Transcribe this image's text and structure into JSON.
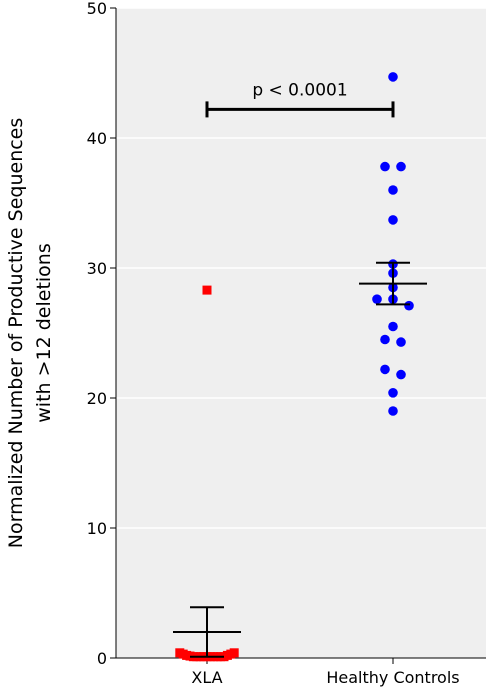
{
  "chart_data": {
    "type": "scatter",
    "title": "",
    "xlabel": "",
    "ylabel_lines": [
      "Normalized Number of Productive Sequences",
      "with >12 deletions"
    ],
    "ylim": [
      0,
      50
    ],
    "yticks": [
      0,
      10,
      20,
      30,
      40,
      50
    ],
    "categories": [
      "XLA",
      "Healthy Controls"
    ],
    "grid": "horizontal",
    "series": [
      {
        "category": "XLA",
        "marker": "square",
        "color": "#ff0000",
        "values": [
          28.3,
          0.4,
          0.3,
          0.2,
          0.15,
          0.1,
          0.1,
          0.1,
          0.1,
          0.1,
          0.1,
          0.1,
          0.1,
          0.1,
          0.1,
          0.2,
          0.3,
          0.4
        ],
        "mean": 2.0,
        "sem_upper": 3.9,
        "sem_lower": 0.1
      },
      {
        "category": "Healthy Controls",
        "marker": "circle",
        "color": "#0000ff",
        "values": [
          44.7,
          37.8,
          37.8,
          36.0,
          33.7,
          30.3,
          29.6,
          28.5,
          27.6,
          27.6,
          27.1,
          25.5,
          24.5,
          24.3,
          22.2,
          21.8,
          20.4,
          19.0
        ],
        "mean": 28.8,
        "sem_upper": 30.4,
        "sem_lower": 27.2
      }
    ],
    "annotation": {
      "text": "p < 0.0001",
      "bracket_y": 42.2
    }
  }
}
